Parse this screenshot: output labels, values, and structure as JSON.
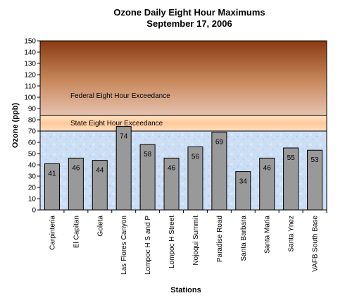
{
  "chart_data": {
    "type": "bar",
    "title": "Ozone Daily Eight Hour Maximums",
    "subtitle": "September 17, 2006",
    "xlabel": "Stations",
    "ylabel": "Ozone (ppb)",
    "ylim": [
      0,
      150
    ],
    "yticks": [
      0,
      10,
      20,
      30,
      40,
      50,
      60,
      70,
      80,
      90,
      100,
      110,
      120,
      130,
      140,
      150
    ],
    "categories": [
      "Carpinteria",
      "El Capitan",
      "Goleta",
      "Las Flores Canyon",
      "Lompoc H S and P",
      "Lompoc H Street",
      "Nojoqui Summit",
      "Paradise Road",
      "Santa Barbara",
      "Santa Maria",
      "Santa Ynez",
      "VAFB South Base"
    ],
    "values": [
      41,
      46,
      44,
      74,
      58,
      46,
      56,
      69,
      34,
      46,
      55,
      53
    ],
    "bar_color": "#999999",
    "zones": [
      {
        "label": "State Eight Hour Exceedance",
        "from": 70,
        "to": 84,
        "color": "#ffd9a8"
      },
      {
        "label": "Federal Eight Hour Exceedance",
        "from": 84,
        "to": 150,
        "color": "#a0522d"
      }
    ],
    "background_color": "#cfe2f3",
    "grid": false,
    "legend": "none"
  }
}
